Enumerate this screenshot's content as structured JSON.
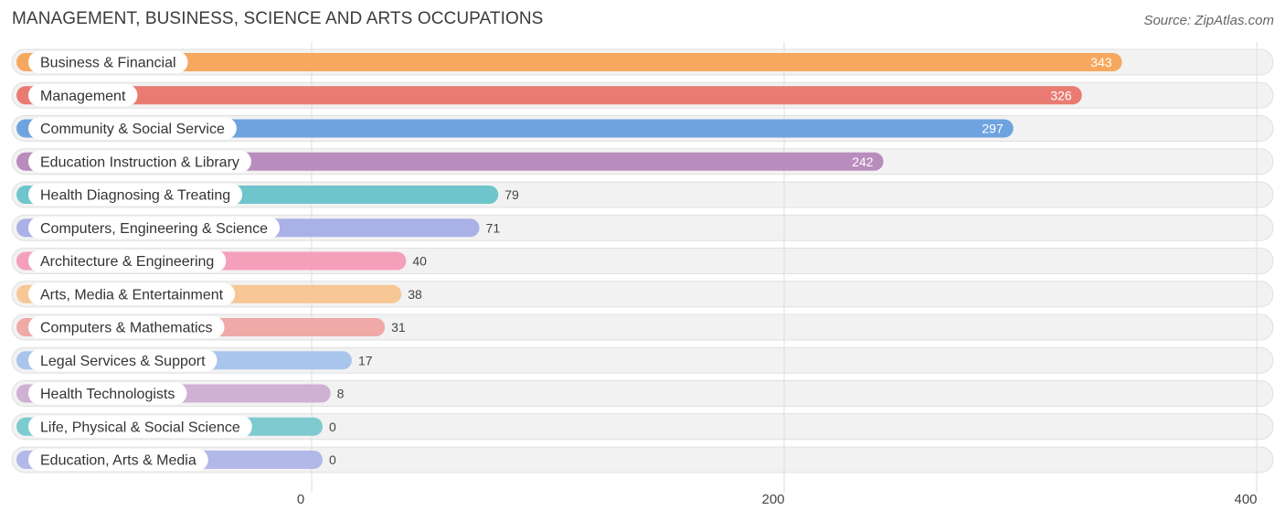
{
  "title": "MANAGEMENT, BUSINESS, SCIENCE AND ARTS OCCUPATIONS",
  "source": "Source: ZipAtlas.com",
  "chart_data": {
    "type": "bar",
    "orientation": "horizontal",
    "title": "MANAGEMENT, BUSINESS, SCIENCE AND ARTS OCCUPATIONS",
    "categories": [
      "Business & Financial",
      "Management",
      "Community & Social Service",
      "Education Instruction & Library",
      "Health Diagnosing & Treating",
      "Computers, Engineering & Science",
      "Architecture & Engineering",
      "Arts, Media & Entertainment",
      "Computers & Mathematics",
      "Legal Services & Support",
      "Health Technologists",
      "Life, Physical & Social Science",
      "Education, Arts & Media"
    ],
    "values": [
      343,
      326,
      297,
      242,
      79,
      71,
      40,
      38,
      31,
      17,
      8,
      0,
      0
    ],
    "colors": [
      "#f6a85e",
      "#e97b73",
      "#6fa3df",
      "#b98cbe",
      "#6ec5cc",
      "#aab1e6",
      "#f59fbb",
      "#f8c796",
      "#efa9a6",
      "#a8c5eb",
      "#cfb1d4",
      "#7dcbcf",
      "#b2b8e8"
    ],
    "x_ticks": [
      0,
      200,
      400
    ],
    "xlim": [
      0,
      400
    ],
    "grid": true
  }
}
